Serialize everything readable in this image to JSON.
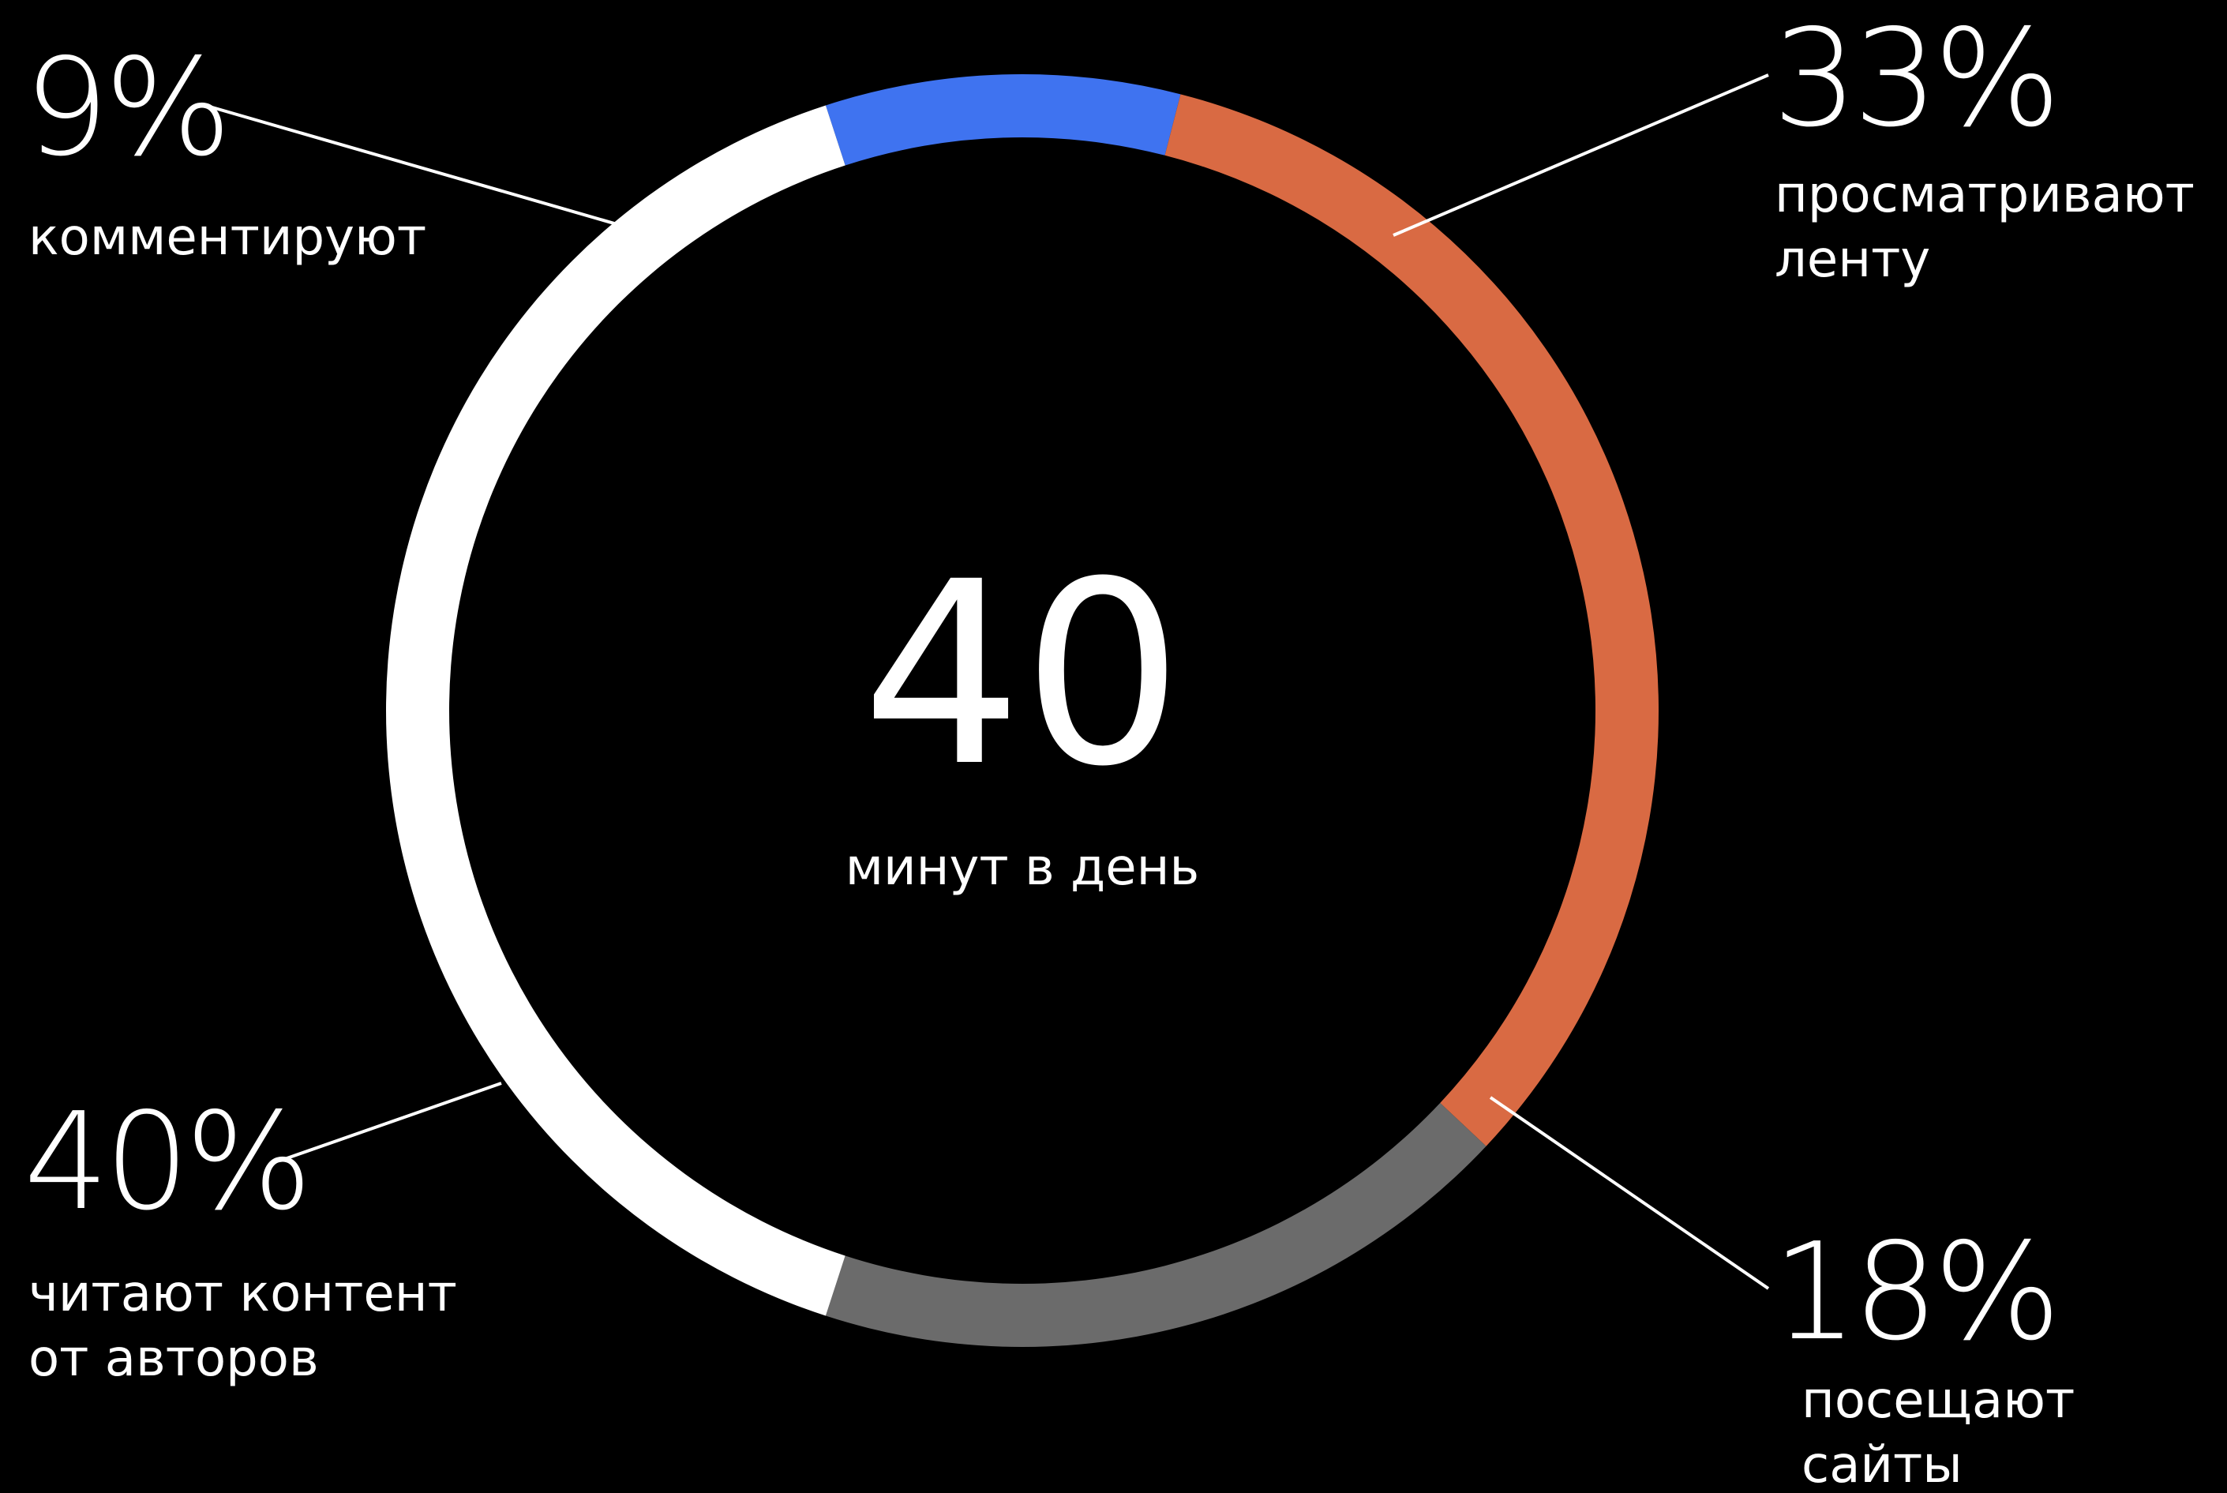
{
  "chart_data": {
    "type": "pie",
    "style": "donut",
    "center": {
      "value": "40",
      "label": "минут в день"
    },
    "slices": [
      {
        "name": "comment",
        "value": 9,
        "percent_label": "9%",
        "label_lines": [
          "комментируют"
        ],
        "color": "#3F73F0"
      },
      {
        "name": "feed",
        "value": 33,
        "percent_label": "33%",
        "label_lines": [
          "просматривают",
          "ленту"
        ],
        "color": "#D96A43"
      },
      {
        "name": "sites",
        "value": 18,
        "percent_label": "18%",
        "label_lines": [
          "посещают",
          "сайты"
        ],
        "color": "#6B6B6B"
      },
      {
        "name": "authors",
        "value": 40,
        "percent_label": "40%",
        "label_lines": [
          "читают контент",
          "от авторов"
        ],
        "color": "#FFFFFF"
      }
    ]
  }
}
